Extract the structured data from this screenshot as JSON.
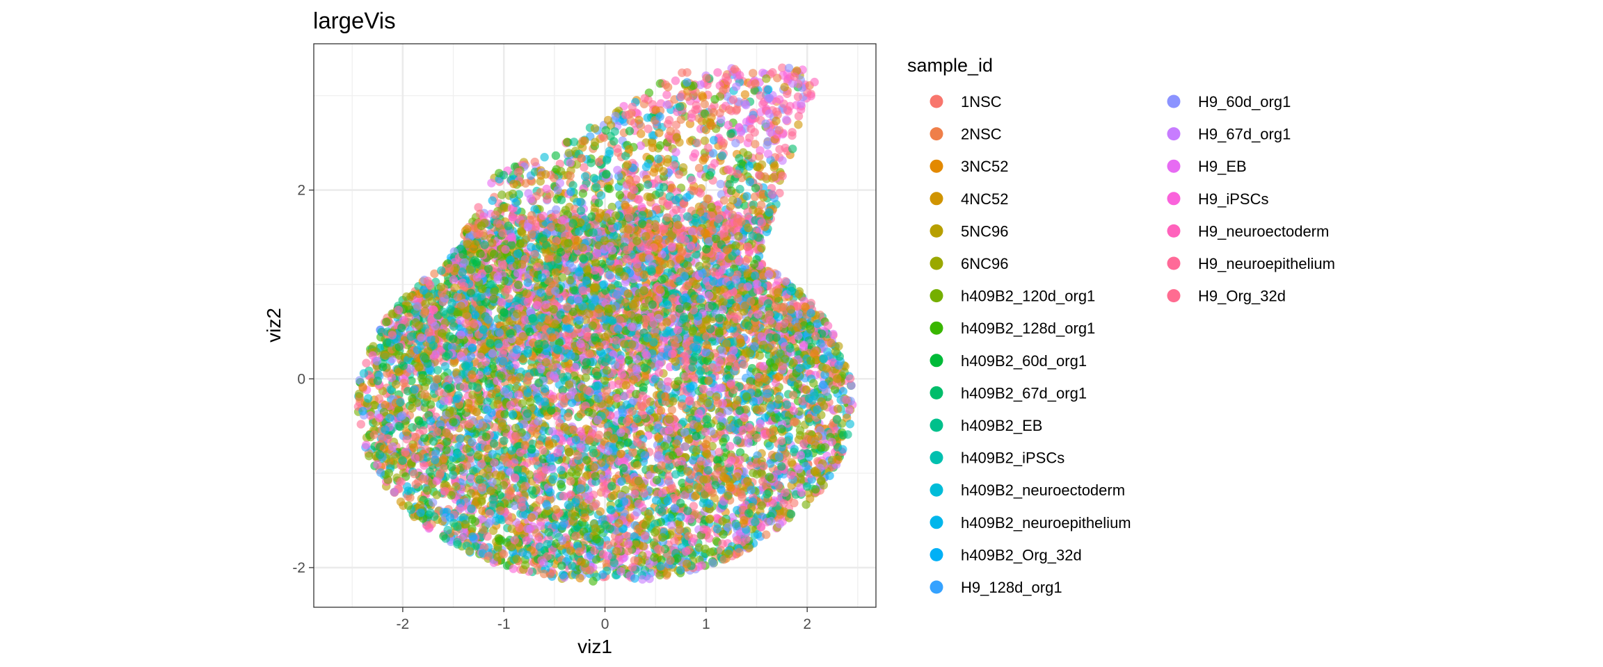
{
  "chart_data": {
    "type": "scatter",
    "title": "largeVis",
    "xlabel": "viz1",
    "ylabel": "viz2",
    "xlim": [
      -2.88,
      2.68
    ],
    "ylim": [
      -2.42,
      3.55
    ],
    "x_ticks": [
      -2,
      -1,
      0,
      1,
      2
    ],
    "y_ticks": [
      -2,
      0,
      2
    ],
    "x_tick_labels": [
      "-2",
      "-1",
      "0",
      "1",
      "2"
    ],
    "y_tick_labels": [
      "-2",
      "0",
      "2"
    ],
    "grid": true,
    "legend_position": "right",
    "legend_title": "sample_id",
    "point_alpha": 0.6,
    "point_count_approx": 9000,
    "series": [
      {
        "name": "1NSC",
        "color": "#F8766D"
      },
      {
        "name": "2NSC",
        "color": "#EF7F49"
      },
      {
        "name": "3NC52",
        "color": "#E38900"
      },
      {
        "name": "4NC52",
        "color": "#D09400"
      },
      {
        "name": "5NC96",
        "color": "#B79F00"
      },
      {
        "name": "6NC96",
        "color": "#9AA800"
      },
      {
        "name": "h409B2_120d_org1",
        "color": "#75AF00"
      },
      {
        "name": "h409B2_128d_org1",
        "color": "#39B600"
      },
      {
        "name": "h409B2_60d_org1",
        "color": "#00BA38"
      },
      {
        "name": "h409B2_67d_org1",
        "color": "#00BD6A"
      },
      {
        "name": "h409B2_EB",
        "color": "#00C08B"
      },
      {
        "name": "h409B2_iPSCs",
        "color": "#00C0AF"
      },
      {
        "name": "h409B2_neuroectoderm",
        "color": "#00BCD8"
      },
      {
        "name": "h409B2_neuroepithelium",
        "color": "#00B6EB"
      },
      {
        "name": "h409B2_Org_32d",
        "color": "#00B0F6"
      },
      {
        "name": "H9_128d_org1",
        "color": "#35A2FF"
      },
      {
        "name": "H9_60d_org1",
        "color": "#8B93FF"
      },
      {
        "name": "H9_67d_org1",
        "color": "#C77CFF"
      },
      {
        "name": "H9_EB",
        "color": "#E76BF3"
      },
      {
        "name": "H9_iPSCs",
        "color": "#FA62DB"
      },
      {
        "name": "H9_neuroectoderm",
        "color": "#FF62BC"
      },
      {
        "name": "H9_neuroepithelium",
        "color": "#FF6A98"
      },
      {
        "name": "H9_Org_32d",
        "color": "#FF6C91"
      }
    ]
  }
}
